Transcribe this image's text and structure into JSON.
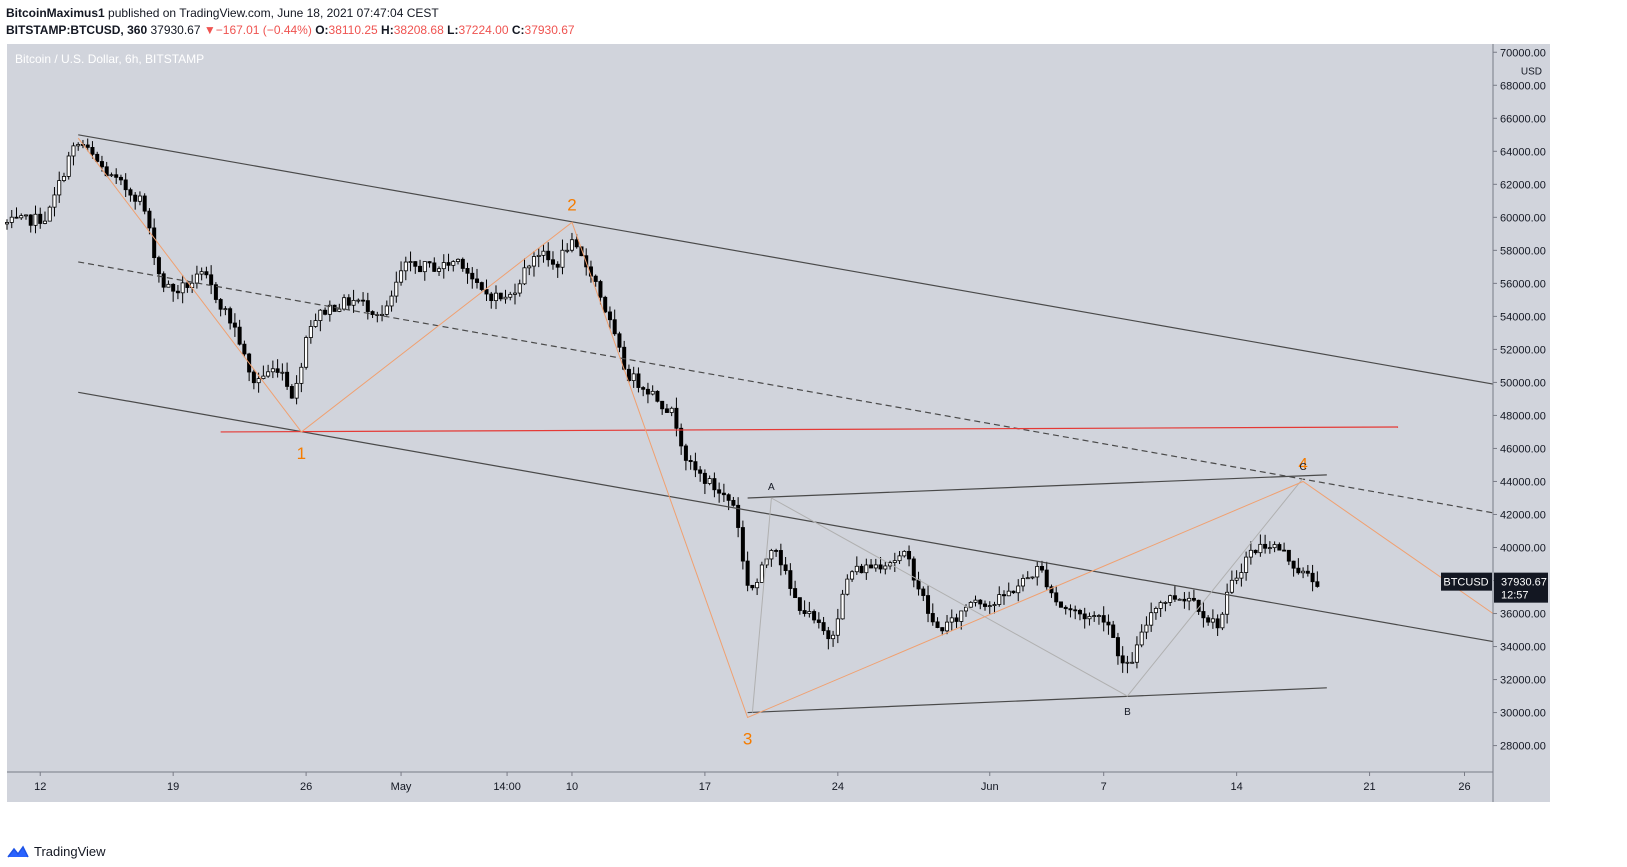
{
  "header": {
    "author": "BitcoinMaximus1",
    "published": "published on TradingView.com, June 18, 2021 07:47:04 CEST",
    "symbol": "BITSTAMP:BTCUSD, 360",
    "last": "37930.67",
    "change_arrow": "▼",
    "change": "−167.01 (−0.44%)",
    "o_label": "O:",
    "o_value": "38110.25",
    "h_label": "H:",
    "h_value": "38208.68",
    "l_label": "L:",
    "l_value": "37224.00",
    "c_label": "C:",
    "c_value": "37930.67"
  },
  "footer": {
    "brand": "TradingView",
    "logo_icon": "tradingview-logo-icon"
  },
  "colors": {
    "plot_bg": "#d1d4dc",
    "candle": "#000000",
    "channel": "#4a4a4a",
    "support": "#e53935",
    "wave": "#f0a070",
    "wave_label": "#f57c00",
    "sub_wave": "#b0b0b0"
  },
  "chart_data": {
    "type": "candlestick",
    "title": "Bitcoin / U.S. Dollar, 6h, BITSTAMP",
    "y_axis": {
      "unit": "USD",
      "ylim": [
        26400,
        70500
      ],
      "ticks": [
        28000,
        30000,
        32000,
        34000,
        36000,
        38000,
        40000,
        42000,
        44000,
        46000,
        48000,
        50000,
        52000,
        54000,
        56000,
        58000,
        60000,
        62000,
        64000,
        66000,
        68000,
        70000
      ],
      "tick_labels": [
        "28000.00",
        "30000.00",
        "32000.00",
        "34000.00",
        "36000.00",
        "38000.00",
        "40000.00",
        "42000.00",
        "44000.00",
        "46000.00",
        "48000.00",
        "50000.00",
        "52000.00",
        "54000.00",
        "56000.00",
        "58000.00",
        "60000.00",
        "62000.00",
        "64000.00",
        "66000.00",
        "68000.00",
        "70000.00"
      ]
    },
    "x_axis": {
      "start": "2021-04-10T06:00",
      "end": "2021-06-27T12:00",
      "ticks": [
        {
          "t": "2021-04-12T00:00",
          "label": "12"
        },
        {
          "t": "2021-04-19T00:00",
          "label": "19"
        },
        {
          "t": "2021-04-26T00:00",
          "label": "26"
        },
        {
          "t": "2021-05-01T00:00",
          "label": "May"
        },
        {
          "t": "2021-05-06T14:00",
          "label": "14:00"
        },
        {
          "t": "2021-05-10T00:00",
          "label": "10"
        },
        {
          "t": "2021-05-17T00:00",
          "label": "17"
        },
        {
          "t": "2021-05-24T00:00",
          "label": "24"
        },
        {
          "t": "2021-06-01T00:00",
          "label": "Jun"
        },
        {
          "t": "2021-06-07T00:00",
          "label": "7"
        },
        {
          "t": "2021-06-14T00:00",
          "label": "14"
        },
        {
          "t": "2021-06-21T00:00",
          "label": "21"
        },
        {
          "t": "2021-06-26T00:00",
          "label": "26"
        }
      ]
    },
    "price_path": [
      {
        "t": "2021-04-10T06:00",
        "p": 59600
      },
      {
        "t": "2021-04-12T12:00",
        "p": 60000
      },
      {
        "t": "2021-04-13T18:00",
        "p": 64000
      },
      {
        "t": "2021-04-14T06:00",
        "p": 64500
      },
      {
        "t": "2021-04-15T18:00",
        "p": 62500
      },
      {
        "t": "2021-04-17T12:00",
        "p": 61000
      },
      {
        "t": "2021-04-18T12:00",
        "p": 56000
      },
      {
        "t": "2021-04-19T06:00",
        "p": 55500
      },
      {
        "t": "2021-04-20T18:00",
        "p": 56500
      },
      {
        "t": "2021-04-22T12:00",
        "p": 53000
      },
      {
        "t": "2021-04-23T06:00",
        "p": 50000
      },
      {
        "t": "2021-04-24T18:00",
        "p": 51000
      },
      {
        "t": "2021-04-25T12:00",
        "p": 49000
      },
      {
        "t": "2021-04-26T06:00",
        "p": 53500
      },
      {
        "t": "2021-04-27T06:00",
        "p": 54500
      },
      {
        "t": "2021-04-28T18:00",
        "p": 55000
      },
      {
        "t": "2021-04-30T06:00",
        "p": 54000
      },
      {
        "t": "2021-05-01T06:00",
        "p": 57000
      },
      {
        "t": "2021-05-03T06:00",
        "p": 57000
      },
      {
        "t": "2021-05-04T06:00",
        "p": 57500
      },
      {
        "t": "2021-05-05T06:00",
        "p": 55500
      },
      {
        "t": "2021-05-06T18:00",
        "p": 55000
      },
      {
        "t": "2021-05-08T06:00",
        "p": 58000
      },
      {
        "t": "2021-05-09T06:00",
        "p": 57000
      },
      {
        "t": "2021-05-10T00:00",
        "p": 58500
      },
      {
        "t": "2021-05-11T06:00",
        "p": 56500
      },
      {
        "t": "2021-05-12T00:00",
        "p": 54000
      },
      {
        "t": "2021-05-13T00:00",
        "p": 50500
      },
      {
        "t": "2021-05-14T06:00",
        "p": 49500
      },
      {
        "t": "2021-05-15T12:00",
        "p": 48000
      },
      {
        "t": "2021-05-16T06:00",
        "p": 45000
      },
      {
        "t": "2021-05-17T06:00",
        "p": 44000
      },
      {
        "t": "2021-05-18T18:00",
        "p": 42500
      },
      {
        "t": "2021-05-19T06:00",
        "p": 38000
      },
      {
        "t": "2021-05-19T18:00",
        "p": 37500
      },
      {
        "t": "2021-05-20T18:00",
        "p": 40500
      },
      {
        "t": "2021-05-21T18:00",
        "p": 37000
      },
      {
        "t": "2021-05-23T06:00",
        "p": 35000
      },
      {
        "t": "2021-05-23T18:00",
        "p": 34500
      },
      {
        "t": "2021-05-24T18:00",
        "p": 38500
      },
      {
        "t": "2021-05-26T06:00",
        "p": 39000
      },
      {
        "t": "2021-05-27T18:00",
        "p": 39500
      },
      {
        "t": "2021-05-29T06:00",
        "p": 35000
      },
      {
        "t": "2021-05-30T06:00",
        "p": 35500
      },
      {
        "t": "2021-05-31T06:00",
        "p": 37000
      },
      {
        "t": "2021-06-01T06:00",
        "p": 36500
      },
      {
        "t": "2021-06-02T18:00",
        "p": 37800
      },
      {
        "t": "2021-06-03T18:00",
        "p": 38800
      },
      {
        "t": "2021-06-04T18:00",
        "p": 36500
      },
      {
        "t": "2021-06-06T06:00",
        "p": 35800
      },
      {
        "t": "2021-06-07T06:00",
        "p": 35800
      },
      {
        "t": "2021-06-08T06:00",
        "p": 32500
      },
      {
        "t": "2021-06-08T18:00",
        "p": 33500
      },
      {
        "t": "2021-06-09T18:00",
        "p": 36500
      },
      {
        "t": "2021-06-10T18:00",
        "p": 37000
      },
      {
        "t": "2021-06-11T18:00",
        "p": 37000
      },
      {
        "t": "2021-06-12T18:00",
        "p": 35500
      },
      {
        "t": "2021-06-13T06:00",
        "p": 35400
      },
      {
        "t": "2021-06-13T18:00",
        "p": 37500
      },
      {
        "t": "2021-06-14T18:00",
        "p": 39600
      },
      {
        "t": "2021-06-15T18:00",
        "p": 40300
      },
      {
        "t": "2021-06-16T12:00",
        "p": 39800
      },
      {
        "t": "2021-06-17T12:00",
        "p": 38500
      },
      {
        "t": "2021-06-18T06:00",
        "p": 37930
      }
    ],
    "last_price": {
      "label": "BTCUSD",
      "value": "37930.67",
      "countdown": "12:57",
      "p": 37930.67
    },
    "trendlines": [
      {
        "name": "upper-channel",
        "style": "solid",
        "color": "channel",
        "points": [
          {
            "t": "2021-04-14T00:00",
            "p": 65000
          },
          {
            "t": "2021-06-27T12:00",
            "p": 49900
          }
        ]
      },
      {
        "name": "middle-channel",
        "style": "dashed",
        "color": "channel",
        "points": [
          {
            "t": "2021-04-14T00:00",
            "p": 57300
          },
          {
            "t": "2021-06-27T12:00",
            "p": 42100
          }
        ]
      },
      {
        "name": "lower-channel",
        "style": "solid",
        "color": "channel",
        "points": [
          {
            "t": "2021-04-14T00:00",
            "p": 49400
          },
          {
            "t": "2021-06-27T12:00",
            "p": 34300
          }
        ]
      },
      {
        "name": "horizontal-support",
        "style": "solid",
        "color": "support",
        "points": [
          {
            "t": "2021-04-21T12:00",
            "p": 47000
          },
          {
            "t": "2021-06-22T12:00",
            "p": 47300
          }
        ]
      },
      {
        "name": "triangle-upper",
        "style": "solid",
        "color": "channel",
        "points": [
          {
            "t": "2021-05-19T06:00",
            "p": 43000
          },
          {
            "t": "2021-06-18T18:00",
            "p": 44400
          }
        ]
      },
      {
        "name": "triangle-lower",
        "style": "solid",
        "color": "channel",
        "points": [
          {
            "t": "2021-05-19T06:00",
            "p": 30000
          },
          {
            "t": "2021-06-18T18:00",
            "p": 31500
          }
        ]
      }
    ],
    "wave_count": {
      "points": [
        {
          "t": "2021-04-14T00:00",
          "p": 64800
        },
        {
          "t": "2021-04-25T18:00",
          "p": 47000
        },
        {
          "t": "2021-05-10T00:00",
          "p": 59700
        },
        {
          "t": "2021-05-19T06:00",
          "p": 29700
        },
        {
          "t": "2021-06-17T12:00",
          "p": 44000
        },
        {
          "t": "2021-06-27T12:00",
          "p": 36000
        }
      ],
      "labels": [
        {
          "text": "1",
          "t": "2021-04-25T18:00",
          "p": 47000,
          "place": "below"
        },
        {
          "text": "2",
          "t": "2021-05-10T00:00",
          "p": 59700,
          "place": "above"
        },
        {
          "text": "3",
          "t": "2021-05-19T06:00",
          "p": 29700,
          "place": "below"
        },
        {
          "text": "4",
          "t": "2021-06-17T12:00",
          "p": 44000,
          "place": "above"
        }
      ]
    },
    "sub_wave": {
      "points": [
        {
          "t": "2021-05-19T12:00",
          "p": 30000
        },
        {
          "t": "2021-05-20T12:00",
          "p": 43000
        },
        {
          "t": "2021-06-08T06:00",
          "p": 31000
        },
        {
          "t": "2021-06-17T12:00",
          "p": 44200
        }
      ],
      "labels": [
        {
          "text": "A",
          "t": "2021-05-20T12:00",
          "p": 43000,
          "place": "above"
        },
        {
          "text": "B",
          "t": "2021-06-08T06:00",
          "p": 31000,
          "place": "below"
        },
        {
          "text": "C",
          "t": "2021-06-17T12:00",
          "p": 44200,
          "place": "above"
        }
      ]
    }
  }
}
